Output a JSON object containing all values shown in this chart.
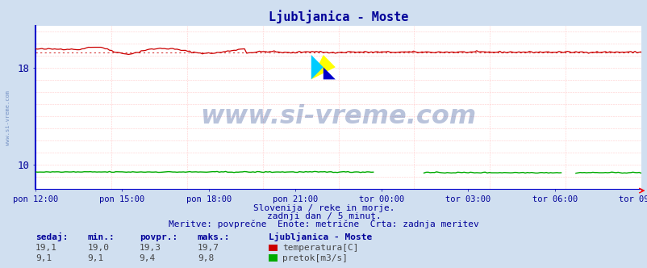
{
  "title": "Ljubljanica - Moste",
  "title_color": "#000099",
  "bg_color": "#d0dff0",
  "plot_bg_color": "#ffffff",
  "grid_color": "#ffaaaa",
  "temp_color": "#cc0000",
  "flow_color": "#00aa00",
  "ylim_min": 8.0,
  "ylim_max": 21.5,
  "yticks": [
    10,
    18
  ],
  "xtick_labels": [
    "pon 12:00",
    "pon 15:00",
    "pon 18:00",
    "pon 21:00",
    "tor 00:00",
    "tor 03:00",
    "tor 06:00",
    "tor 09:00"
  ],
  "watermark": "www.si-vreme.com",
  "watermark_color": "#1a3a8a",
  "watermark_alpha": 0.3,
  "footer_line1": "Slovenija / reke in morje.",
  "footer_line2": "zadnji dan / 5 minut.",
  "footer_line3": "Meritve: povprečne  Enote: metrične  Črta: zadnja meritev",
  "footer_color": "#000099",
  "legend_title": "Ljubljanica - Moste",
  "legend_color": "#000099",
  "table_headers": [
    "sedaj:",
    "min.:",
    "povpr.:",
    "maks.:"
  ],
  "temp_values": [
    "19,1",
    "19,0",
    "19,3",
    "19,7"
  ],
  "flow_values": [
    "9,1",
    "9,1",
    "9,4",
    "9,8"
  ],
  "temp_label": "temperatura[C]",
  "flow_label": "pretok[m3/s]",
  "temp_avg": 19.3,
  "flow_avg": 9.4,
  "n_points": 288,
  "temp_min": 19.0,
  "temp_max": 19.7,
  "flow_min": 9.1,
  "flow_max": 9.8,
  "tick_color": "#000099",
  "spine_color": "#0000cc",
  "left_spine_color": "#0000cc",
  "logo_yellow": "#ffff00",
  "logo_cyan": "#00ccff",
  "logo_blue": "#0000cc"
}
